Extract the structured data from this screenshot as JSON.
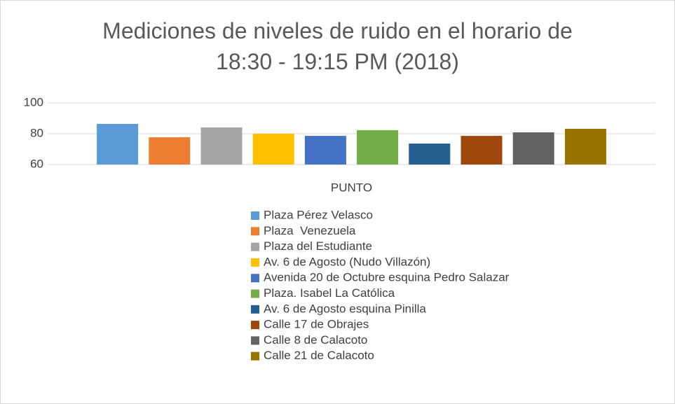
{
  "chart_data": {
    "type": "bar",
    "title": "Mediciones de niveles de ruido en el horario de\n18:30 - 19:15 PM (2018)",
    "categories": [
      "PUNTO"
    ],
    "series": [
      {
        "name": "Plaza Pérez Velasco",
        "color": "#5b9bd5",
        "values": [
          86.4
        ]
      },
      {
        "name": "Plaza  Venezuela",
        "color": "#ed7d31",
        "values": [
          77.7
        ]
      },
      {
        "name": "Plaza del Estudiante",
        "color": "#a5a5a5",
        "values": [
          84.1
        ]
      },
      {
        "name": "Av. 6 de Agosto (Nudo Villazón)",
        "color": "#ffc000",
        "values": [
          80
        ]
      },
      {
        "name": "Avenida 20 de Octubre esquina Pedro Salazar",
        "color": "#4472c4",
        "values": [
          78.6
        ]
      },
      {
        "name": "Plaza. Isabel La Católica",
        "color": "#70ad47",
        "values": [
          82.3
        ]
      },
      {
        "name": "Av. 6 de Agosto esquina Pinilla",
        "color": "#255e91",
        "values": [
          73.6
        ]
      },
      {
        "name": "Calle 17 de Obrajes",
        "color": "#9e480e",
        "values": [
          78.6
        ]
      },
      {
        "name": "Calle 8 de Calacoto",
        "color": "#636363",
        "values": [
          80.9
        ]
      },
      {
        "name": "Calle 21 de Calacoto",
        "color": "#997300",
        "values": [
          83.2
        ]
      }
    ],
    "ylim": [
      60,
      100
    ],
    "yticks": [
      60,
      80,
      100
    ],
    "grid": true,
    "legend": "bottom"
  }
}
